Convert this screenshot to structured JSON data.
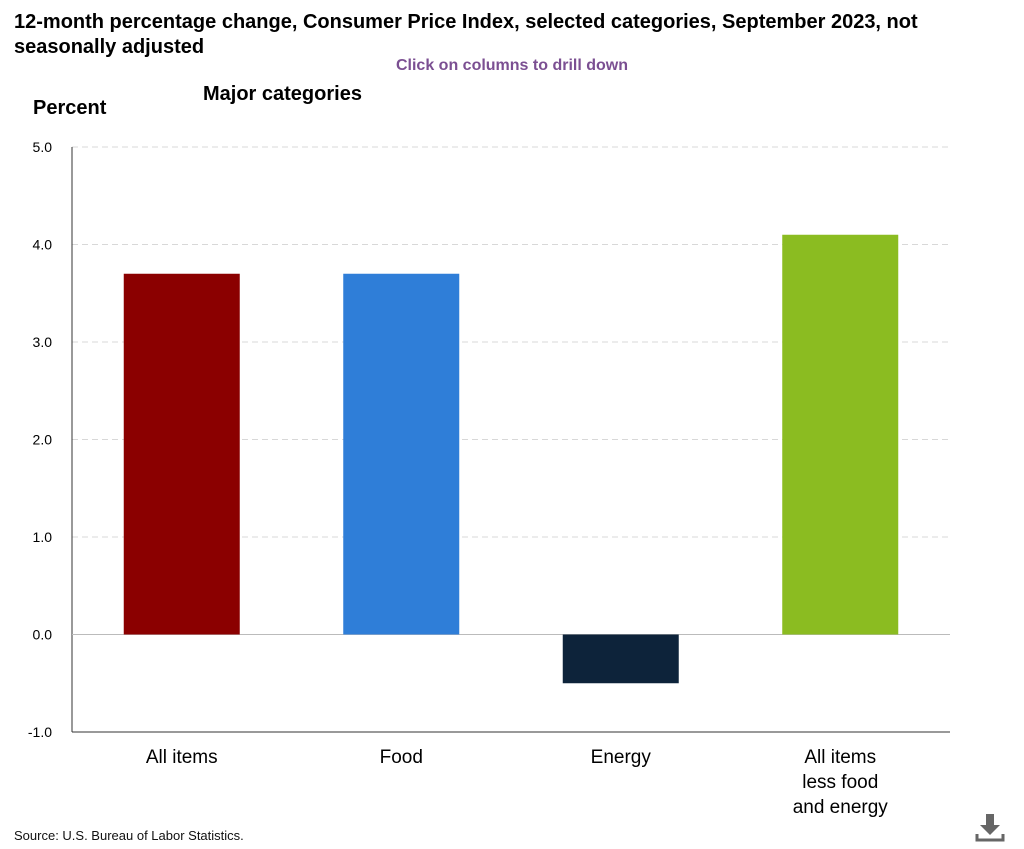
{
  "title": "12-month percentage change, Consumer Price Index, selected categories, September 2023, not seasonally adjusted",
  "drill_hint": "Click on columns to drill down",
  "source": "Source: U.S. Bureau of Labor Statistics.",
  "chart_data": {
    "type": "bar",
    "title": "12-month percentage change, Consumer Price Index, selected categories, September 2023, not seasonally adjusted",
    "subtitle": "Major categories",
    "xlabel": "",
    "ylabel": "Percent",
    "ylim": [
      -1.0,
      5.0
    ],
    "yticks": [
      "5.0",
      "4.0",
      "3.0",
      "2.0",
      "1.0",
      "0.0",
      "-1.0"
    ],
    "ytick_values": [
      5.0,
      4.0,
      3.0,
      2.0,
      1.0,
      0.0,
      -1.0
    ],
    "grid": true,
    "legend": "none",
    "categories": [
      "All items",
      "Food",
      "Energy",
      "All items less food and energy"
    ],
    "category_lines": [
      [
        "All items"
      ],
      [
        "Food"
      ],
      [
        "Energy"
      ],
      [
        "All items",
        "less food",
        "and energy"
      ]
    ],
    "values": [
      3.7,
      3.7,
      -0.5,
      4.1
    ],
    "colors": [
      "#8b0000",
      "#2f7ed8",
      "#0d233a",
      "#8bbc21"
    ]
  },
  "icons": {
    "download": "download-icon"
  }
}
